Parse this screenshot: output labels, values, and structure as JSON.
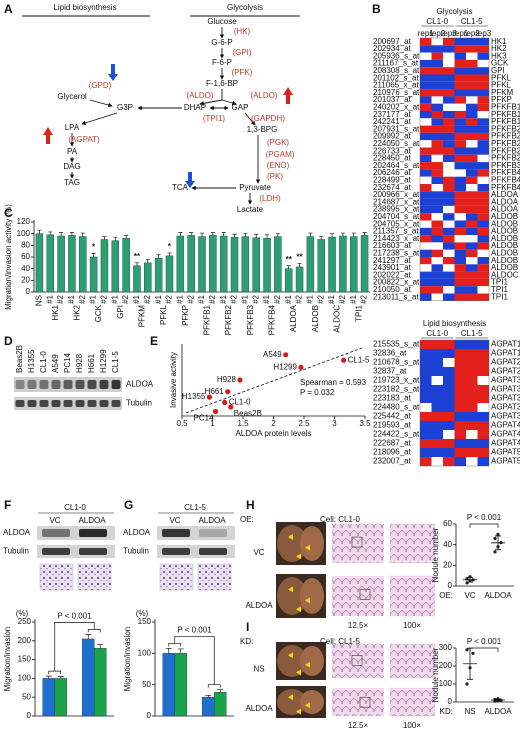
{
  "panel_a": {
    "label": "A",
    "headings": [
      "Lipid biosynthesis",
      "Glycolysis"
    ],
    "metabolites": [
      "Glucose",
      "G-6-P",
      "F-6-P",
      "F-1,6-BP",
      "DHAP",
      "GAP",
      "1,3-BPG",
      "Pyruvate",
      "Lactate",
      "TCA",
      "Glycerol",
      "G3P",
      "LPA",
      "PA",
      "DAG",
      "TAG"
    ],
    "enzymes": [
      "(HK)",
      "(GPI)",
      "(PFK)",
      "(ALDO)",
      "(ALDO)",
      "(TPI1)",
      "(GAPDH)",
      "(PGK)",
      "(PGAM)",
      "(ENO)",
      "(PK)",
      "(LDH)",
      "(GPD)",
      "(AGPAT)"
    ]
  },
  "panel_b": {
    "label": "B",
    "clim": [
      -1,
      1
    ],
    "colors": [
      "#1c3fd4",
      "#ffffff",
      "#e3201c"
    ],
    "glycolysis": {
      "title": "Glycolysis",
      "groups": [
        "CL1-0",
        "CL1-5"
      ],
      "reps": [
        "rep1",
        "rep2",
        "rep3",
        "rep1",
        "rep2",
        "rep3"
      ],
      "probes": [
        "200697_at",
        "202934_at",
        "205936_s_at",
        "211167_s_at",
        "208308_s_at",
        "201102_s_at",
        "211065_x_at",
        "210976_s_at",
        "201037_at",
        "240202_x_at",
        "237177_at",
        "242241_at",
        "207931_s_at",
        "209992_at",
        "224050_s_at",
        "226733_at",
        "228450_at",
        "202464_s_at",
        "206246_at",
        "228499_at",
        "232674_at",
        "200966_x_at",
        "214687_x_at",
        "238995_x_at",
        "204704_s_at",
        "204705_x_at",
        "211357_s_at",
        "214423_x_at",
        "216603_at",
        "217238_s_at",
        "241297_at",
        "243901_at",
        "202022_at",
        "200822_x_at",
        "210050_at",
        "213011_s_at"
      ],
      "genes": [
        "HK1",
        "HK2",
        "HK3",
        "GCK",
        "GPI",
        "PFKL",
        "PFKL",
        "PFKM",
        "PFKP",
        "PFKFB1",
        "PFKFB1",
        "PFKFB1",
        "PFKFB2",
        "PFKFB2",
        "PFKFB2",
        "PFKFB2",
        "PFKFB2",
        "PFKFB3",
        "PFKFB4",
        "PFKFB4",
        "PFKFB4",
        "ALDOA",
        "ALDOA",
        "ALDOA",
        "ALDOB",
        "ALDOB",
        "ALDOB",
        "ALDOB",
        "ALDOB",
        "ALDOB",
        "ALDOB",
        "ALDOB",
        "ALDOC",
        "TPI1",
        "TPI1",
        "TPI1"
      ],
      "values": [
        [
          1,
          0,
          1,
          -1,
          -1,
          -1
        ],
        [
          -1,
          -1,
          -1,
          1,
          1,
          1
        ],
        [
          0,
          1,
          0,
          -1,
          0,
          -1
        ],
        [
          -1,
          -1,
          0,
          1,
          1,
          0
        ],
        [
          1,
          1,
          1,
          -1,
          -1,
          -1
        ],
        [
          -1,
          -1,
          -1,
          1,
          1,
          1
        ],
        [
          -1,
          -1,
          -1,
          1,
          1,
          1
        ],
        [
          1,
          1,
          1,
          -1,
          -1,
          -1
        ],
        [
          -1,
          0,
          -1,
          1,
          0,
          1
        ],
        [
          1,
          -1,
          0,
          0,
          -1,
          1
        ],
        [
          -1,
          1,
          -1,
          1,
          -1,
          0
        ],
        [
          0,
          -1,
          1,
          -1,
          1,
          -1
        ],
        [
          1,
          1,
          1,
          -1,
          -1,
          -1
        ],
        [
          -1,
          -1,
          -1,
          1,
          1,
          1
        ],
        [
          0,
          1,
          -1,
          1,
          0,
          -1
        ],
        [
          1,
          1,
          1,
          -1,
          -1,
          -1
        ],
        [
          -1,
          0,
          -1,
          1,
          1,
          0
        ],
        [
          1,
          1,
          0,
          -1,
          -1,
          -1
        ],
        [
          -1,
          1,
          0,
          0,
          -1,
          1
        ],
        [
          0,
          -1,
          1,
          -1,
          1,
          0
        ],
        [
          1,
          0,
          1,
          -1,
          0,
          -1
        ],
        [
          -1,
          -1,
          -1,
          1,
          1,
          1
        ],
        [
          -1,
          -1,
          -1,
          1,
          1,
          1
        ],
        [
          -1,
          -1,
          0,
          1,
          1,
          1
        ],
        [
          1,
          0,
          -1,
          0,
          -1,
          1
        ],
        [
          0,
          1,
          0,
          -1,
          1,
          -1
        ],
        [
          -1,
          1,
          -1,
          1,
          -1,
          1
        ],
        [
          1,
          -1,
          1,
          0,
          0,
          -1
        ],
        [
          0,
          0,
          -1,
          1,
          -1,
          1
        ],
        [
          -1,
          1,
          0,
          -1,
          1,
          0
        ],
        [
          1,
          0,
          1,
          -1,
          0,
          -1
        ],
        [
          0,
          -1,
          0,
          1,
          -1,
          1
        ],
        [
          -1,
          -1,
          -1,
          1,
          1,
          1
        ],
        [
          -1,
          -1,
          -1,
          1,
          1,
          1
        ],
        [
          1,
          1,
          0,
          -1,
          -1,
          0
        ],
        [
          -1,
          0,
          -1,
          1,
          1,
          1
        ]
      ]
    },
    "lipid": {
      "title": "Lipid biosynthesis",
      "groups": [
        "CL1-0",
        "CL1-5"
      ],
      "probes": [
        "215535_s_at",
        "32836_at",
        "210678_s_at",
        "32837_at",
        "219723_x_at",
        "223182_s_at",
        "223183_at",
        "224480_s_at",
        "225442_at",
        "219593_at",
        "224422_s_at",
        "222687_at",
        "218096_at",
        "232007_at"
      ],
      "genes": [
        "AGPAT1",
        "AGPAT1",
        "AGPAT2",
        "AGPAT2",
        "AGPAT3",
        "AGPAT3",
        "AGPAT3",
        "AGPAT3",
        "AGPAT3",
        "AGPAT4",
        "AGPAT4",
        "AGPAT4",
        "AGPAT5",
        "AGPAT5"
      ],
      "values": [
        [
          1,
          1,
          1,
          -1,
          -1,
          -1
        ],
        [
          -1,
          -1,
          -1,
          1,
          1,
          1
        ],
        [
          -1,
          -1,
          0,
          1,
          1,
          1
        ],
        [
          -1,
          -1,
          -1,
          1,
          1,
          1
        ],
        [
          -1,
          0,
          -1,
          1,
          1,
          0
        ],
        [
          -1,
          -1,
          -1,
          1,
          1,
          1
        ],
        [
          -1,
          -1,
          -1,
          1,
          1,
          1
        ],
        [
          0,
          -1,
          -1,
          1,
          1,
          0
        ],
        [
          1,
          1,
          1,
          -1,
          -1,
          -1
        ],
        [
          -1,
          -1,
          -1,
          1,
          1,
          1
        ],
        [
          -1,
          -1,
          0,
          1,
          0,
          1
        ],
        [
          1,
          1,
          1,
          -1,
          -1,
          -1
        ],
        [
          -1,
          -1,
          -1,
          1,
          1,
          1
        ],
        [
          1,
          0,
          1,
          -1,
          0,
          -1
        ]
      ]
    }
  },
  "panel_c": {
    "label": "C",
    "type": "bar",
    "ylabel": "Migration/invasion activity (%)",
    "ylim": [
      0,
      120
    ],
    "yticks": [
      0,
      20,
      40,
      60,
      80,
      100,
      120
    ],
    "color": "#2e9e74",
    "categories": [
      "NS",
      "#1",
      "#2",
      "#1",
      "#2",
      "#1",
      "#2",
      "#1",
      "#2",
      "#1",
      "#2",
      "#1",
      "#2",
      "#1",
      "#2",
      "#1",
      "#2",
      "#1",
      "#2",
      "#1",
      "#2",
      "#1",
      "#2",
      "#1",
      "#2",
      "#1",
      "#2",
      "#1",
      "#2",
      "#1",
      "#2"
    ],
    "group_labels": [
      "HK1",
      "HK2",
      "GCK",
      "GPI",
      "PFKM",
      "PFKL",
      "PFKP",
      "PFKFB1",
      "PFKFB2",
      "PFKFB3",
      "PFKFB4",
      "ALDOA",
      "ALDOB",
      "ALDOC",
      "TPI1"
    ],
    "values": [
      100,
      98,
      96,
      97,
      95,
      60,
      90,
      88,
      92,
      45,
      50,
      58,
      62,
      96,
      97,
      95,
      97,
      96,
      94,
      95,
      93,
      92,
      95,
      40,
      43,
      95,
      90,
      94,
      96,
      95,
      97
    ],
    "errors": [
      6,
      5,
      6,
      5,
      6,
      6,
      5,
      6,
      5,
      5,
      6,
      6,
      5,
      6,
      5,
      6,
      5,
      6,
      5,
      5,
      6,
      6,
      5,
      5,
      6,
      6,
      5,
      6,
      5,
      6,
      5
    ],
    "significance": [
      null,
      null,
      null,
      null,
      null,
      "*",
      null,
      null,
      null,
      "**",
      null,
      null,
      "*",
      null,
      null,
      null,
      null,
      null,
      null,
      null,
      null,
      null,
      null,
      "**",
      "**",
      null,
      null,
      null,
      null,
      null,
      null
    ]
  },
  "panel_d": {
    "label": "D",
    "lanes": [
      "Beas2B",
      "H1355",
      "CL1-0",
      "A549",
      "PC14",
      "H928",
      "H661",
      "H1299",
      "CL1-5"
    ],
    "rows": [
      "ALDOA",
      "Tubulin"
    ]
  },
  "panel_e": {
    "label": "E",
    "type": "scatter",
    "xlabel": "ALDOA protein levels",
    "ylabel": "Invasive activity",
    "xlim": [
      0.5,
      3.5
    ],
    "xticks": [
      0.5,
      1,
      1.5,
      2,
      2.5,
      3,
      3.5
    ],
    "ylim": [
      0,
      8
    ],
    "color": "#d7191c",
    "point_labels": [
      "Beas2B",
      "H1355",
      "CL1-0",
      "A549",
      "PC14",
      "H928",
      "H661",
      "H1299",
      "CL1-5"
    ],
    "x": [
      1.3,
      0.95,
      1.2,
      2.2,
      1.05,
      1.45,
      1.25,
      2.45,
      3.15
    ],
    "values": [
      1.0,
      2.1,
      1.5,
      6.8,
      0.5,
      4.0,
      2.7,
      5.4,
      6.2
    ],
    "annotations": [
      "Spearman = 0.593",
      "P = 0.032"
    ]
  },
  "panel_f": {
    "label": "F",
    "type": "bar",
    "title": "CL1-0",
    "lanes": [
      "VC",
      "ALDOA"
    ],
    "rows": [
      "ALDOA",
      "Tubulin"
    ],
    "unit_label": "(%)",
    "ylabel": "Migration/invasion",
    "ylim": [
      0,
      250
    ],
    "yticks": [
      0,
      50,
      100,
      150,
      200,
      250
    ],
    "annotation": "P < 0.001",
    "series": [
      {
        "color": "#1f6fd1",
        "values": [
          100,
          205
        ],
        "errors": [
          6,
          12
        ]
      },
      {
        "color": "#19a34a",
        "values": [
          100,
          180
        ],
        "errors": [
          5,
          10
        ]
      }
    ]
  },
  "panel_g": {
    "label": "G",
    "type": "bar",
    "title": "CL1-5",
    "lanes": [
      "VC",
      "ALDOA"
    ],
    "rows": [
      "ALDOA",
      "Tubulin"
    ],
    "unit_label": "(%)",
    "ylabel": "Migration/invasion",
    "ylim": [
      0,
      150
    ],
    "yticks": [
      0,
      50,
      100,
      150
    ],
    "annotation": "P < 0.001",
    "series": [
      {
        "color": "#1f6fd1",
        "values": [
          100,
          30
        ],
        "errors": [
          8,
          3
        ]
      },
      {
        "color": "#19a34a",
        "values": [
          100,
          38
        ],
        "errors": [
          7,
          4
        ]
      }
    ]
  },
  "panel_h": {
    "label": "H",
    "type": "scatter",
    "prefix": "OE:",
    "title": "Cell: CL1-0",
    "groups": [
      "VC",
      "ALDOA"
    ],
    "magnifications": [
      "12.5×",
      "100×"
    ],
    "ylabel": "Nodule number",
    "ylim": [
      0,
      60
    ],
    "yticks": [
      0,
      20,
      40,
      60
    ],
    "annotation": "P < 0.001",
    "values": [
      [
        3,
        5,
        6,
        7,
        9
      ],
      [
        33,
        38,
        42,
        46,
        50
      ]
    ]
  },
  "panel_i": {
    "label": "I",
    "type": "scatter",
    "prefix": "KD:",
    "title": "Cell: CL1-5",
    "groups": [
      "NS",
      "ALDOA"
    ],
    "magnifications": [
      "12.5×",
      "100×"
    ],
    "ylabel": "Nodule number",
    "ylim": [
      0,
      300
    ],
    "yticks": [
      0,
      100,
      200,
      300
    ],
    "annotation": "P < 0.001",
    "values": [
      [
        100,
        190,
        270,
        290
      ],
      [
        5,
        8,
        10,
        14,
        18
      ]
    ]
  }
}
